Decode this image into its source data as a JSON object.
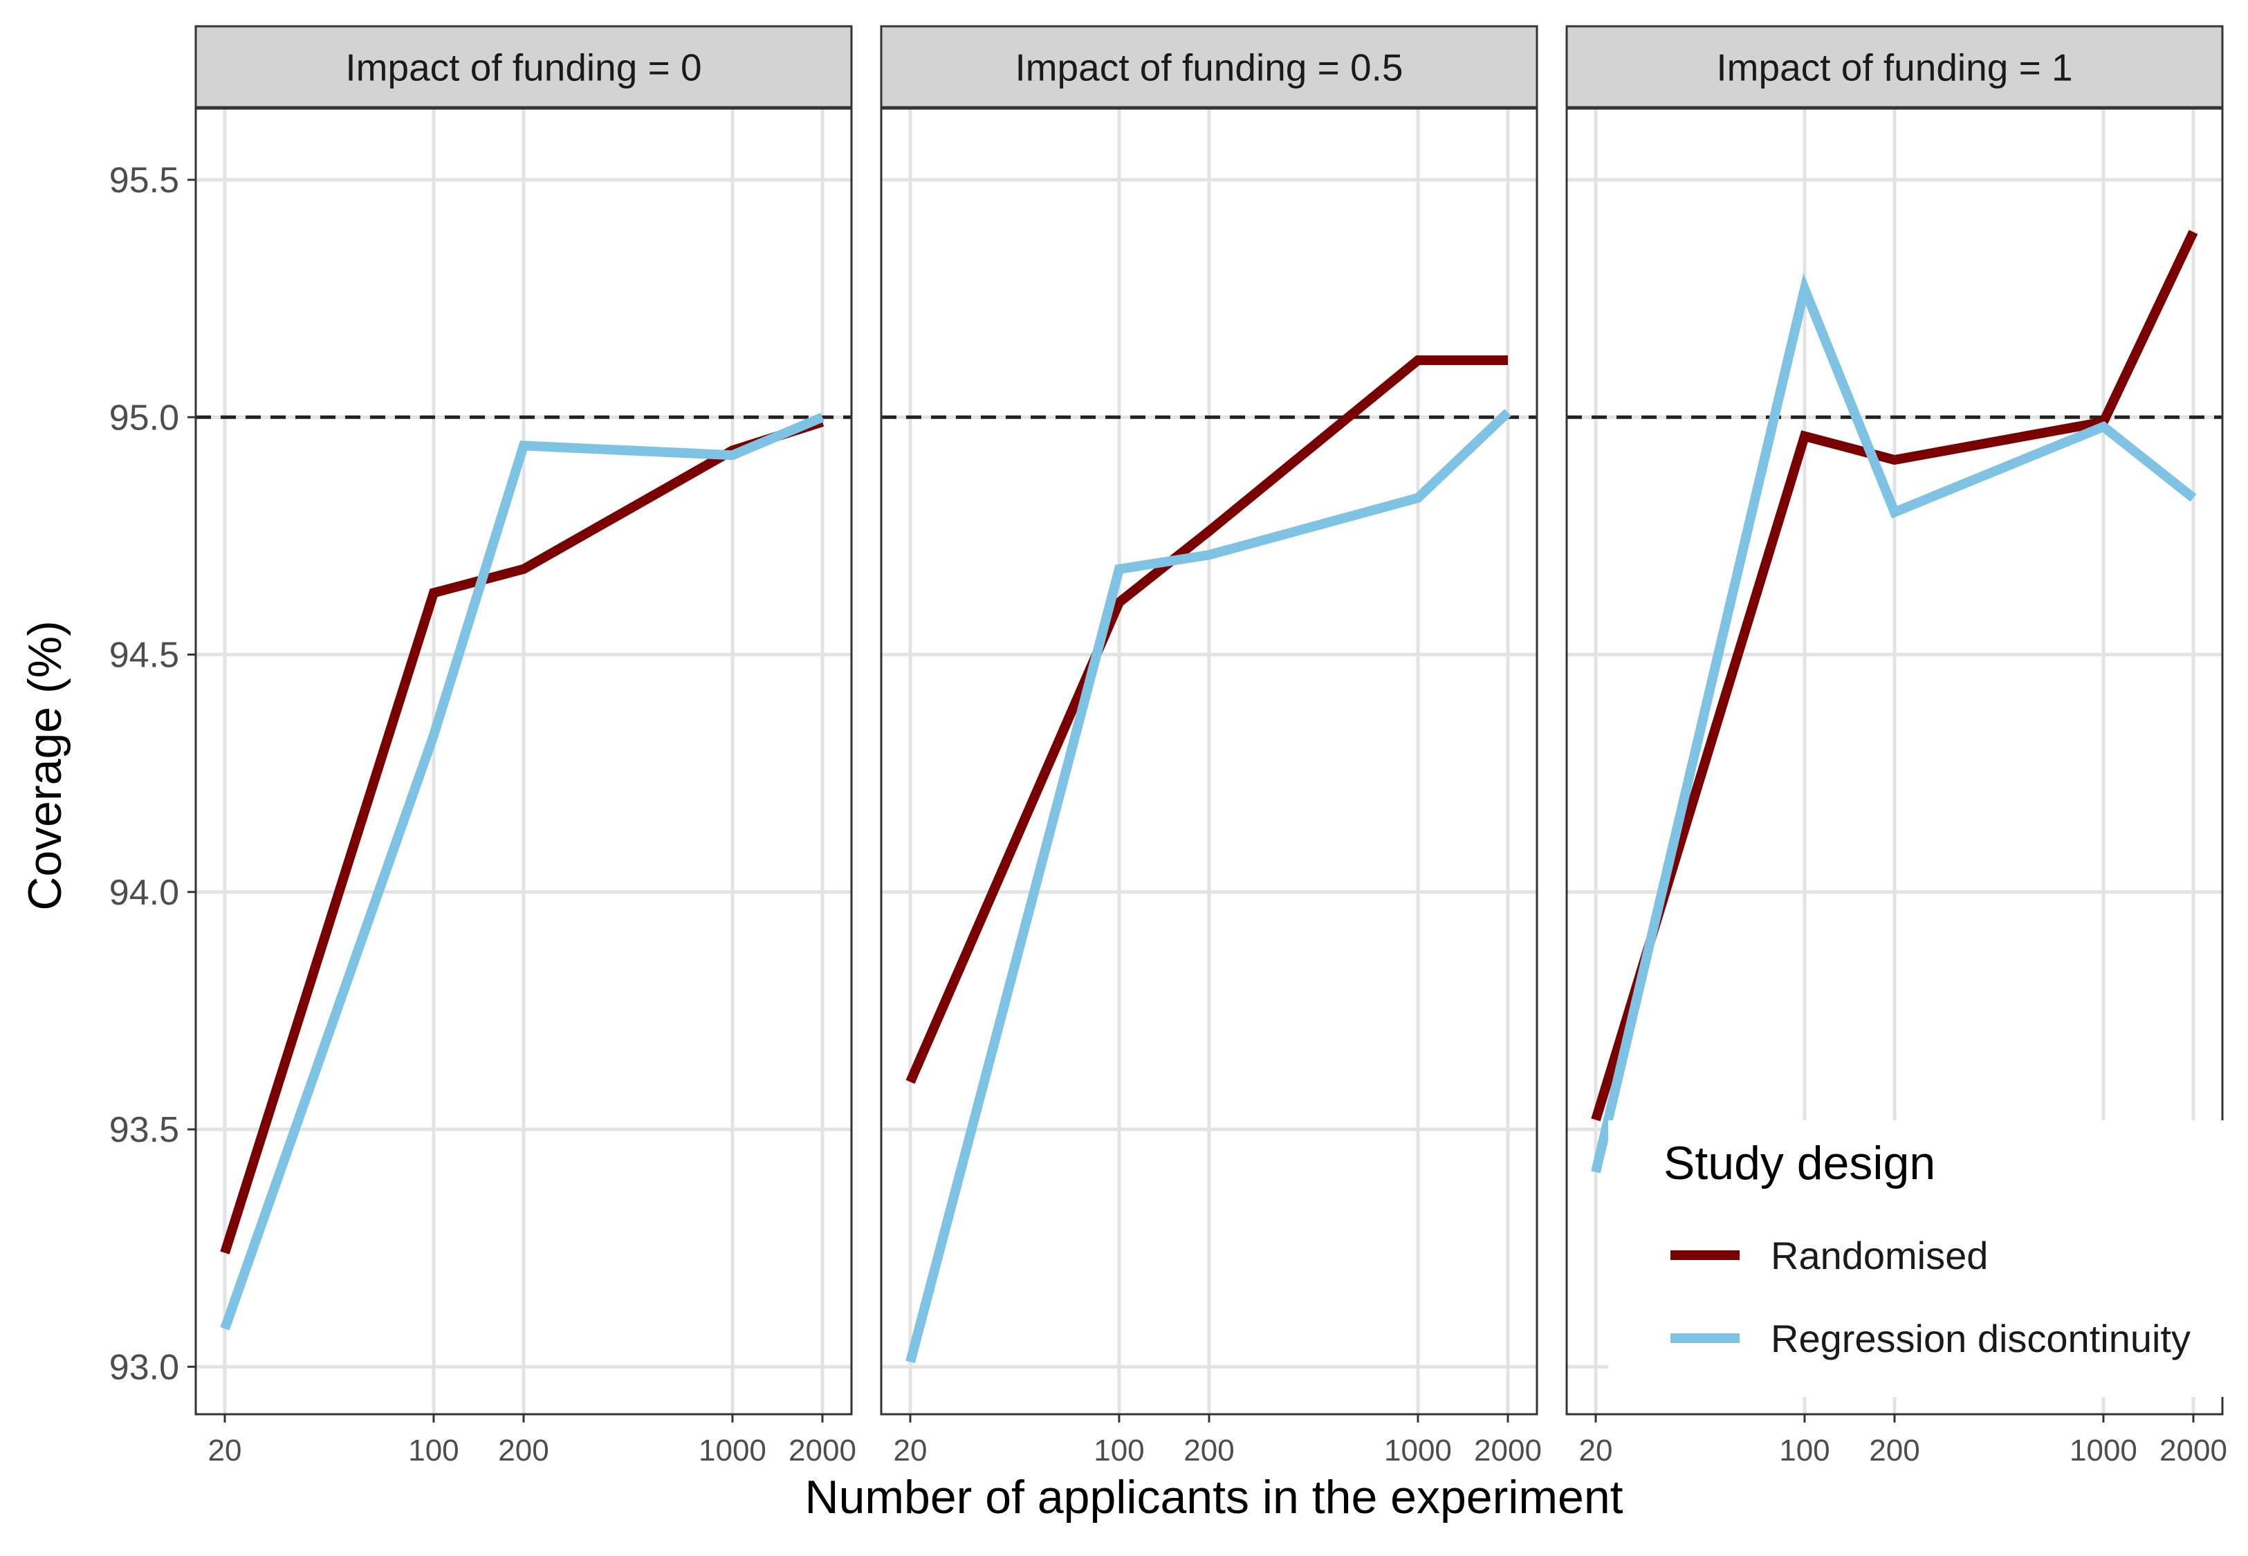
{
  "chart_data": {
    "type": "line",
    "xlabel": "Number of applicants in the experiment",
    "ylabel": "Coverage (%)",
    "x_scale": "log",
    "x_ticks": [
      20,
      100,
      200,
      1000,
      2000
    ],
    "x_tick_labels": [
      "20",
      "100",
      "200",
      "1000",
      "2000"
    ],
    "ylim": [
      92.9,
      95.65
    ],
    "y_ticks": [
      93.0,
      93.5,
      94.0,
      94.5,
      95.0,
      95.5
    ],
    "y_tick_labels": [
      "93.0",
      "93.5",
      "94.0",
      "94.5",
      "95.0",
      "95.5"
    ],
    "reference_line": {
      "y": 95.0,
      "style": "dashed"
    },
    "grid": true,
    "colors": {
      "Randomised": "#7a0000",
      "Regression discontinuity": "#7ec3e3"
    },
    "legend": {
      "title": "Study design",
      "placement": "bottom-right of third panel",
      "entries": [
        "Randomised",
        "Regression discontinuity"
      ]
    },
    "panels": [
      {
        "strip": "Impact of funding = 0",
        "x": [
          20,
          100,
          200,
          1000,
          2000
        ],
        "series": [
          {
            "name": "Randomised",
            "values": [
              93.24,
              94.63,
              94.68,
              94.93,
              94.99
            ]
          },
          {
            "name": "Regression discontinuity",
            "values": [
              93.08,
              94.33,
              94.94,
              94.92,
              95.0
            ]
          }
        ]
      },
      {
        "strip": "Impact of funding = 0.5",
        "x": [
          20,
          100,
          200,
          1000,
          2000
        ],
        "series": [
          {
            "name": "Randomised",
            "values": [
              93.6,
              94.61,
              94.76,
              95.12,
              95.12
            ]
          },
          {
            "name": "Regression discontinuity",
            "values": [
              93.01,
              94.68,
              94.71,
              94.83,
              95.01
            ]
          }
        ]
      },
      {
        "strip": "Impact of funding = 1",
        "x": [
          20,
          100,
          200,
          1000,
          2000
        ],
        "series": [
          {
            "name": "Randomised",
            "values": [
              93.52,
              94.96,
              94.91,
              94.99,
              95.39
            ]
          },
          {
            "name": "Regression discontinuity",
            "values": [
              93.41,
              95.27,
              94.8,
              94.98,
              94.83
            ]
          }
        ]
      }
    ]
  }
}
